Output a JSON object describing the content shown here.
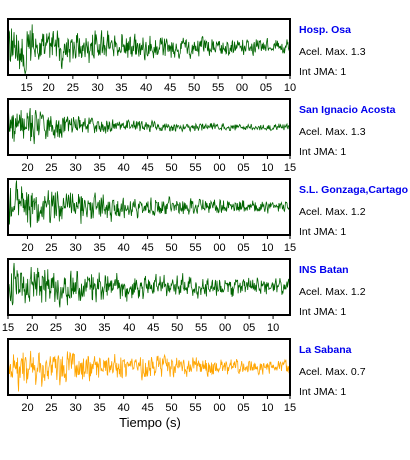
{
  "chart_data": {
    "type": "line",
    "xlabel": "Tiempo (s)",
    "label_color": "#0000ee",
    "panels": [
      {
        "name": "Hosp. Osa",
        "acel_label": "Acel. Max. 1.3",
        "jma_label": "Int JMA: 1",
        "color": "#006400",
        "tick_labels": [
          "15",
          "20",
          "25",
          "30",
          "35",
          "40",
          "45",
          "50",
          "55",
          "00",
          "05",
          "10"
        ],
        "tick_fracs": [
          0.066,
          0.144,
          0.23,
          0.318,
          0.402,
          0.49,
          0.575,
          0.66,
          0.745,
          0.83,
          0.915,
          1.0
        ],
        "amp": 0.9,
        "onset": 0.0,
        "decay": 1.6,
        "seed": 3
      },
      {
        "name": "San Ignacio Acosta",
        "acel_label": "Acel. Max. 1.3",
        "jma_label": "Int JMA: 1",
        "color": "#006400",
        "tick_labels": [
          "20",
          "25",
          "30",
          "35",
          "40",
          "45",
          "50",
          "55",
          "00",
          "05",
          "10",
          "15"
        ],
        "tick_fracs": [
          0.069,
          0.154,
          0.24,
          0.325,
          0.41,
          0.495,
          0.58,
          0.665,
          0.75,
          0.835,
          0.92,
          1.0
        ],
        "amp": 0.95,
        "onset": 0.0,
        "decay": 4.5,
        "seed": 7
      },
      {
        "name": "S.L. Gonzaga,Cartago",
        "acel_label": "Acel. Max. 1.2",
        "jma_label": "Int JMA: 1",
        "color": "#006400",
        "tick_labels": [
          "20",
          "25",
          "30",
          "35",
          "40",
          "45",
          "50",
          "55",
          "00",
          "05",
          "10",
          "15"
        ],
        "tick_fracs": [
          0.069,
          0.154,
          0.24,
          0.325,
          0.41,
          0.495,
          0.58,
          0.665,
          0.75,
          0.835,
          0.92,
          1.0
        ],
        "amp": 0.9,
        "onset": 0.0,
        "decay": 2.0,
        "seed": 11
      },
      {
        "name": "INS Batan",
        "acel_label": "Acel. Max. 1.2",
        "jma_label": "Int JMA: 1",
        "color": "#006400",
        "tick_labels": [
          "15",
          "20",
          "25",
          "30",
          "35",
          "40",
          "45",
          "50",
          "55",
          "00",
          "05",
          "10"
        ],
        "tick_fracs": [
          0.0,
          0.086,
          0.17,
          0.257,
          0.342,
          0.43,
          0.515,
          0.6,
          0.685,
          0.77,
          0.855,
          0.94
        ],
        "amp": 0.85,
        "onset": 0.0,
        "decay": 1.3,
        "seed": 19
      },
      {
        "name": "La Sabana",
        "acel_label": "Acel. Max. 0.7",
        "jma_label": "Int JMA: 1",
        "color": "#ffa500",
        "tick_labels": [
          "20",
          "25",
          "30",
          "35",
          "40",
          "45",
          "50",
          "55",
          "00",
          "05",
          "10",
          "15"
        ],
        "tick_fracs": [
          0.069,
          0.154,
          0.24,
          0.325,
          0.41,
          0.495,
          0.58,
          0.665,
          0.75,
          0.835,
          0.92,
          1.0
        ],
        "amp": 0.8,
        "onset": 0.0,
        "decay": 1.5,
        "seed": 23
      }
    ]
  }
}
